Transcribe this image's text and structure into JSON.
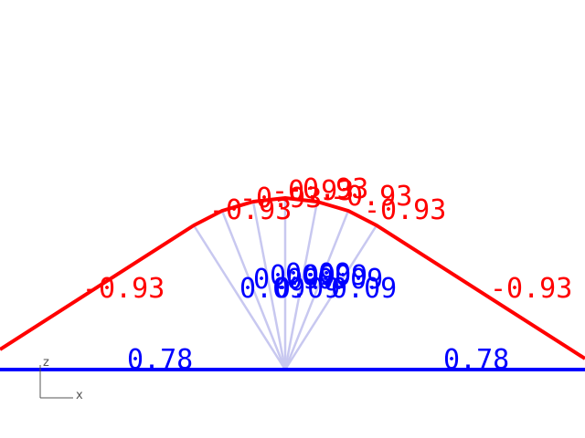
{
  "diagram": {
    "colors": {
      "top_chord": "#ff0000",
      "bottom_chord": "#0000ff",
      "web_members": "#c8c8f0",
      "axis": "#555555"
    },
    "top_chord_labels": [
      "-0.93",
      "-0.93",
      "-0.93",
      "-0.93",
      "-0.93",
      "-0.93",
      "-0.93",
      "-0.93"
    ],
    "web_labels": [
      "0.09",
      "0.09",
      "0.09",
      "0.09",
      "0.09",
      "0.09",
      "0.09",
      "0.09"
    ],
    "bottom_chord_labels": [
      "0.78",
      "0.78"
    ],
    "axis": {
      "z": "z",
      "x": "x"
    }
  }
}
